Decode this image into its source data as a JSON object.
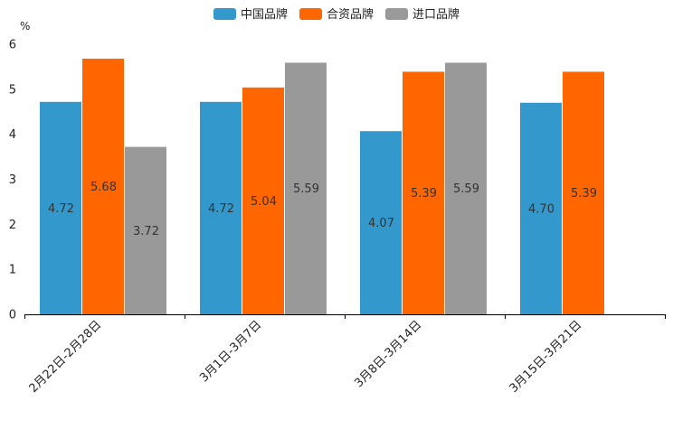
{
  "chart_data": {
    "type": "bar",
    "title": "",
    "xlabel": "",
    "ylabel": "%",
    "ylim": [
      0,
      6
    ],
    "yticks": [
      0,
      1,
      2,
      3,
      4,
      5,
      6
    ],
    "grid": false,
    "legend_position": "top",
    "categories": [
      "2月22日-2月28日",
      "3月1日-3月7日",
      "3月8日-3月14日",
      "3月15日-3月21日"
    ],
    "series": [
      {
        "name": "中国品牌",
        "color": "#3399cc",
        "values": [
          4.72,
          4.72,
          4.07,
          4.7
        ],
        "labels": [
          "4.72",
          "4.72",
          "4.07",
          "4.70"
        ]
      },
      {
        "name": "合资品牌",
        "color": "#ff6600",
        "values": [
          5.68,
          5.04,
          5.39,
          5.39
        ],
        "labels": [
          "5.68",
          "5.04",
          "5.39",
          "5.39"
        ]
      },
      {
        "name": "进口品牌",
        "color": "#999999",
        "values": [
          3.72,
          5.59,
          5.59,
          null
        ],
        "labels": [
          "3.72",
          "5.59",
          "5.59",
          ""
        ]
      }
    ]
  }
}
